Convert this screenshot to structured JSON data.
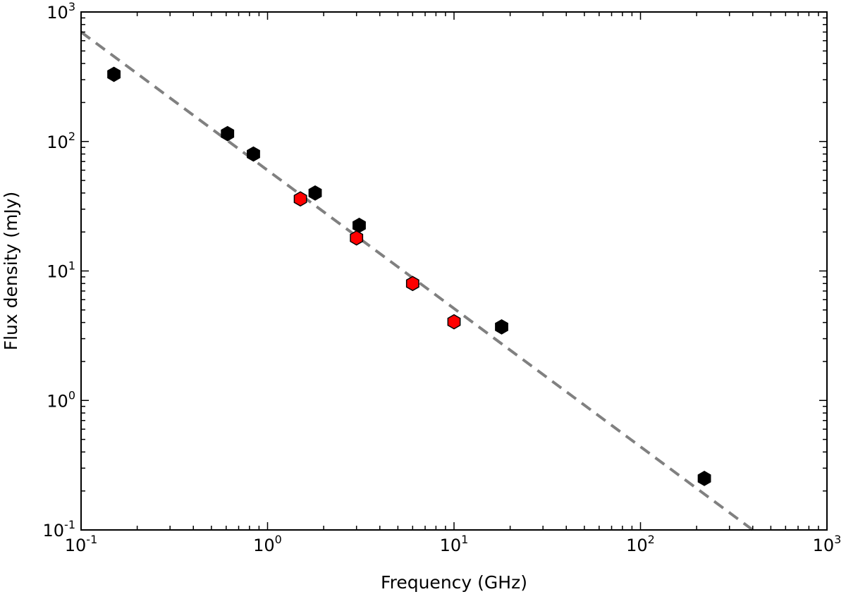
{
  "chart_data": {
    "type": "scatter",
    "title": "",
    "xlabel": "Frequency (GHz)",
    "ylabel": "Flux density (mJy)",
    "xscale": "log",
    "yscale": "log",
    "xlim": [
      0.1,
      1000
    ],
    "ylim": [
      0.1,
      1000
    ],
    "grid": false,
    "x_ticks": [
      {
        "base": "10",
        "exp": "-1",
        "value": 0.1
      },
      {
        "base": "10",
        "exp": "0",
        "value": 1
      },
      {
        "base": "10",
        "exp": "1",
        "value": 10
      },
      {
        "base": "10",
        "exp": "2",
        "value": 100
      },
      {
        "base": "10",
        "exp": "3",
        "value": 1000
      }
    ],
    "y_ticks": [
      {
        "base": "10",
        "exp": "-1",
        "value": 0.1
      },
      {
        "base": "10",
        "exp": "0",
        "value": 1
      },
      {
        "base": "10",
        "exp": "1",
        "value": 10
      },
      {
        "base": "10",
        "exp": "2",
        "value": 100
      },
      {
        "base": "10",
        "exp": "3",
        "value": 1000
      }
    ],
    "series": [
      {
        "name": "black points",
        "color": "#000000",
        "marker": "hexagon",
        "points": [
          {
            "x": 0.15,
            "y": 330,
            "yerr_low": 290,
            "yerr_high": 375
          },
          {
            "x": 0.61,
            "y": 115,
            "yerr_low": 106,
            "yerr_high": 124
          },
          {
            "x": 0.84,
            "y": 80,
            "yerr_low": 74,
            "yerr_high": 86
          },
          {
            "x": 1.8,
            "y": 40,
            "yerr_low": 37,
            "yerr_high": 43
          },
          {
            "x": 3.1,
            "y": 22.5,
            "yerr_low": 20.8,
            "yerr_high": 24.3
          },
          {
            "x": 18,
            "y": 3.7,
            "yerr_low": 3.42,
            "yerr_high": 4.0
          },
          {
            "x": 220,
            "y": 0.25,
            "yerr_low": 0.225,
            "yerr_high": 0.277
          }
        ]
      },
      {
        "name": "red points",
        "color": "#ff0000",
        "marker": "hexagon",
        "points": [
          {
            "x": 1.5,
            "y": 36
          },
          {
            "x": 3.0,
            "y": 18
          },
          {
            "x": 6.0,
            "y": 8
          },
          {
            "x": 10,
            "y": 4.05
          }
        ]
      }
    ],
    "fit_line": {
      "name": "power-law fit",
      "style": "dashed",
      "color": "#808080",
      "x_start": 0.1,
      "y_start": 700,
      "x_end": 400,
      "y_end": 0.1
    }
  }
}
